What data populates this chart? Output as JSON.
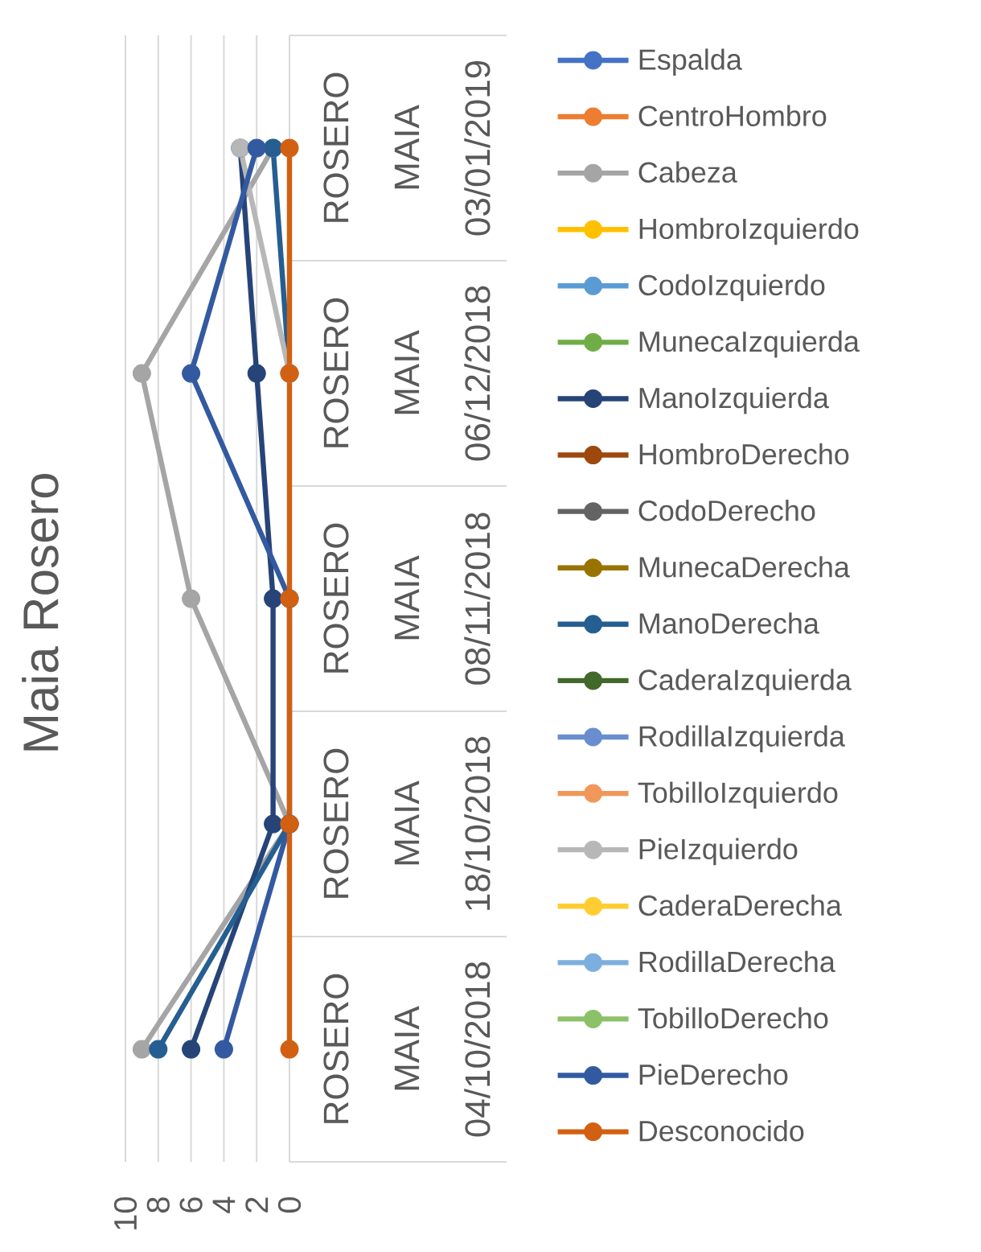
{
  "chart_data": {
    "type": "line",
    "title": "Maia Rosero",
    "orientation": "horizontal",
    "categories": [
      "ROSERO MAIA 03/01/2019",
      "ROSERO MAIA 06/12/2018",
      "ROSERO MAIA 08/11/2018",
      "ROSERO MAIA 18/10/2018",
      "ROSERO MAIA 04/10/2018"
    ],
    "series": [
      {
        "name": "Espalda",
        "color": "#4472c4",
        "values": [
          null,
          null,
          null,
          null,
          null
        ]
      },
      {
        "name": "CentroHombro",
        "color": "#ed7d31",
        "values": [
          null,
          null,
          null,
          null,
          null
        ]
      },
      {
        "name": "Cabeza",
        "color": "#a5a5a5",
        "values": [
          1,
          9,
          6,
          0,
          9
        ]
      },
      {
        "name": "HombroIzquierdo",
        "color": "#ffc000",
        "values": [
          null,
          null,
          null,
          null,
          null
        ]
      },
      {
        "name": "CodoIzquierdo",
        "color": "#5b9bd5",
        "values": [
          null,
          null,
          null,
          null,
          null
        ]
      },
      {
        "name": "MunecaIzquierda",
        "color": "#70ad47",
        "values": [
          null,
          null,
          null,
          null,
          null
        ]
      },
      {
        "name": "ManoIzquierda",
        "color": "#264478",
        "values": [
          3,
          2,
          1,
          1,
          6
        ]
      },
      {
        "name": "HombroDerecho",
        "color": "#9e480e",
        "values": [
          null,
          null,
          null,
          null,
          null
        ]
      },
      {
        "name": "CodoDerecho",
        "color": "#636363",
        "values": [
          null,
          null,
          null,
          null,
          null
        ]
      },
      {
        "name": "MunecaDerecha",
        "color": "#997300",
        "values": [
          null,
          null,
          null,
          null,
          null
        ]
      },
      {
        "name": "ManoDerecha",
        "color": "#255e91",
        "values": [
          1,
          0,
          null,
          0,
          8
        ]
      },
      {
        "name": "CaderaIzquierda",
        "color": "#43682b",
        "values": [
          null,
          null,
          null,
          null,
          null
        ]
      },
      {
        "name": "RodillaIzquierda",
        "color": "#698ed0",
        "values": [
          null,
          null,
          null,
          null,
          null
        ]
      },
      {
        "name": "TobilloIzquierdo",
        "color": "#f1975a",
        "values": [
          null,
          null,
          null,
          null,
          null
        ]
      },
      {
        "name": "PieIzquierdo",
        "color": "#b7b7b7",
        "values": [
          3,
          0,
          null,
          null,
          null
        ]
      },
      {
        "name": "CaderaDerecha",
        "color": "#ffcd33",
        "values": [
          null,
          null,
          null,
          null,
          null
        ]
      },
      {
        "name": "RodillaDerecha",
        "color": "#7cafdd",
        "values": [
          null,
          null,
          null,
          null,
          null
        ]
      },
      {
        "name": "TobilloDerecho",
        "color": "#8cc168",
        "values": [
          null,
          null,
          null,
          null,
          null
        ]
      },
      {
        "name": "PieDerecho",
        "color": "#335aa1",
        "values": [
          2,
          6,
          0,
          0,
          4
        ]
      },
      {
        "name": "Desconocido",
        "color": "#d26012",
        "values": [
          0,
          0,
          0,
          0,
          0
        ]
      }
    ],
    "xlim": [
      10,
      0
    ],
    "xticks": [
      10,
      8,
      6,
      4,
      2,
      0
    ],
    "grid": "x",
    "legend": "right",
    "marker": "circle"
  }
}
